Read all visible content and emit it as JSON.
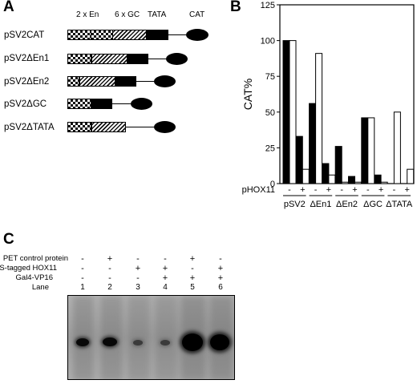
{
  "panelA": {
    "letter": "A",
    "element_labels": {
      "en": "2 x En",
      "gc": "6 x GC",
      "tata": "TATA",
      "cat": "CAT"
    },
    "constructs": [
      "pSV2CAT",
      "pSV2ΔEn1",
      "pSV2ΔEn2",
      "pSV2ΔGC",
      "pSV2ΔTATA"
    ]
  },
  "panelB": {
    "letter": "B",
    "ylabel": "CAT%",
    "ytick_labels": [
      "0",
      "25",
      "50",
      "75",
      "100",
      "125"
    ],
    "factor_label": "pHOX11",
    "minus_sign": "-",
    "plus_sign": "+",
    "group_labels": [
      "pSV2",
      "ΔEn1",
      "ΔEn2",
      "ΔGC",
      "ΔTATA"
    ]
  },
  "chart_data": {
    "type": "bar",
    "categories": [
      "pSV2 -",
      "pSV2 +",
      "ΔEn1 -",
      "ΔEn1 +",
      "ΔEn2 -",
      "ΔEn2 +",
      "ΔGC -",
      "ΔGC +",
      "ΔTATA -",
      "ΔTATA +"
    ],
    "series": [
      {
        "fill": "#000000",
        "values": [
          100,
          33,
          56,
          14,
          26,
          5,
          46,
          6,
          0,
          0
        ]
      },
      {
        "fill": "#ffffff",
        "values": [
          100,
          10,
          91,
          6,
          1,
          1,
          46,
          1,
          50,
          10
        ]
      }
    ],
    "ylabel": "CAT%",
    "ylim": [
      0,
      125
    ],
    "yticks": [
      0,
      25,
      50,
      75,
      100,
      125
    ],
    "grid": false
  },
  "panelC": {
    "letter": "C",
    "row_labels": [
      "PET control protein",
      "S-tagged HOX11",
      "Gal4-VP16",
      "Lane"
    ],
    "rows": [
      [
        "-",
        "+",
        "-",
        "-",
        "+",
        "-"
      ],
      [
        "-",
        "-",
        "+",
        "+",
        "-",
        "+"
      ],
      [
        "-",
        "-",
        "-",
        "+",
        "+",
        "+"
      ]
    ],
    "lanes": [
      "1",
      "2",
      "3",
      "4",
      "5",
      "6"
    ]
  }
}
